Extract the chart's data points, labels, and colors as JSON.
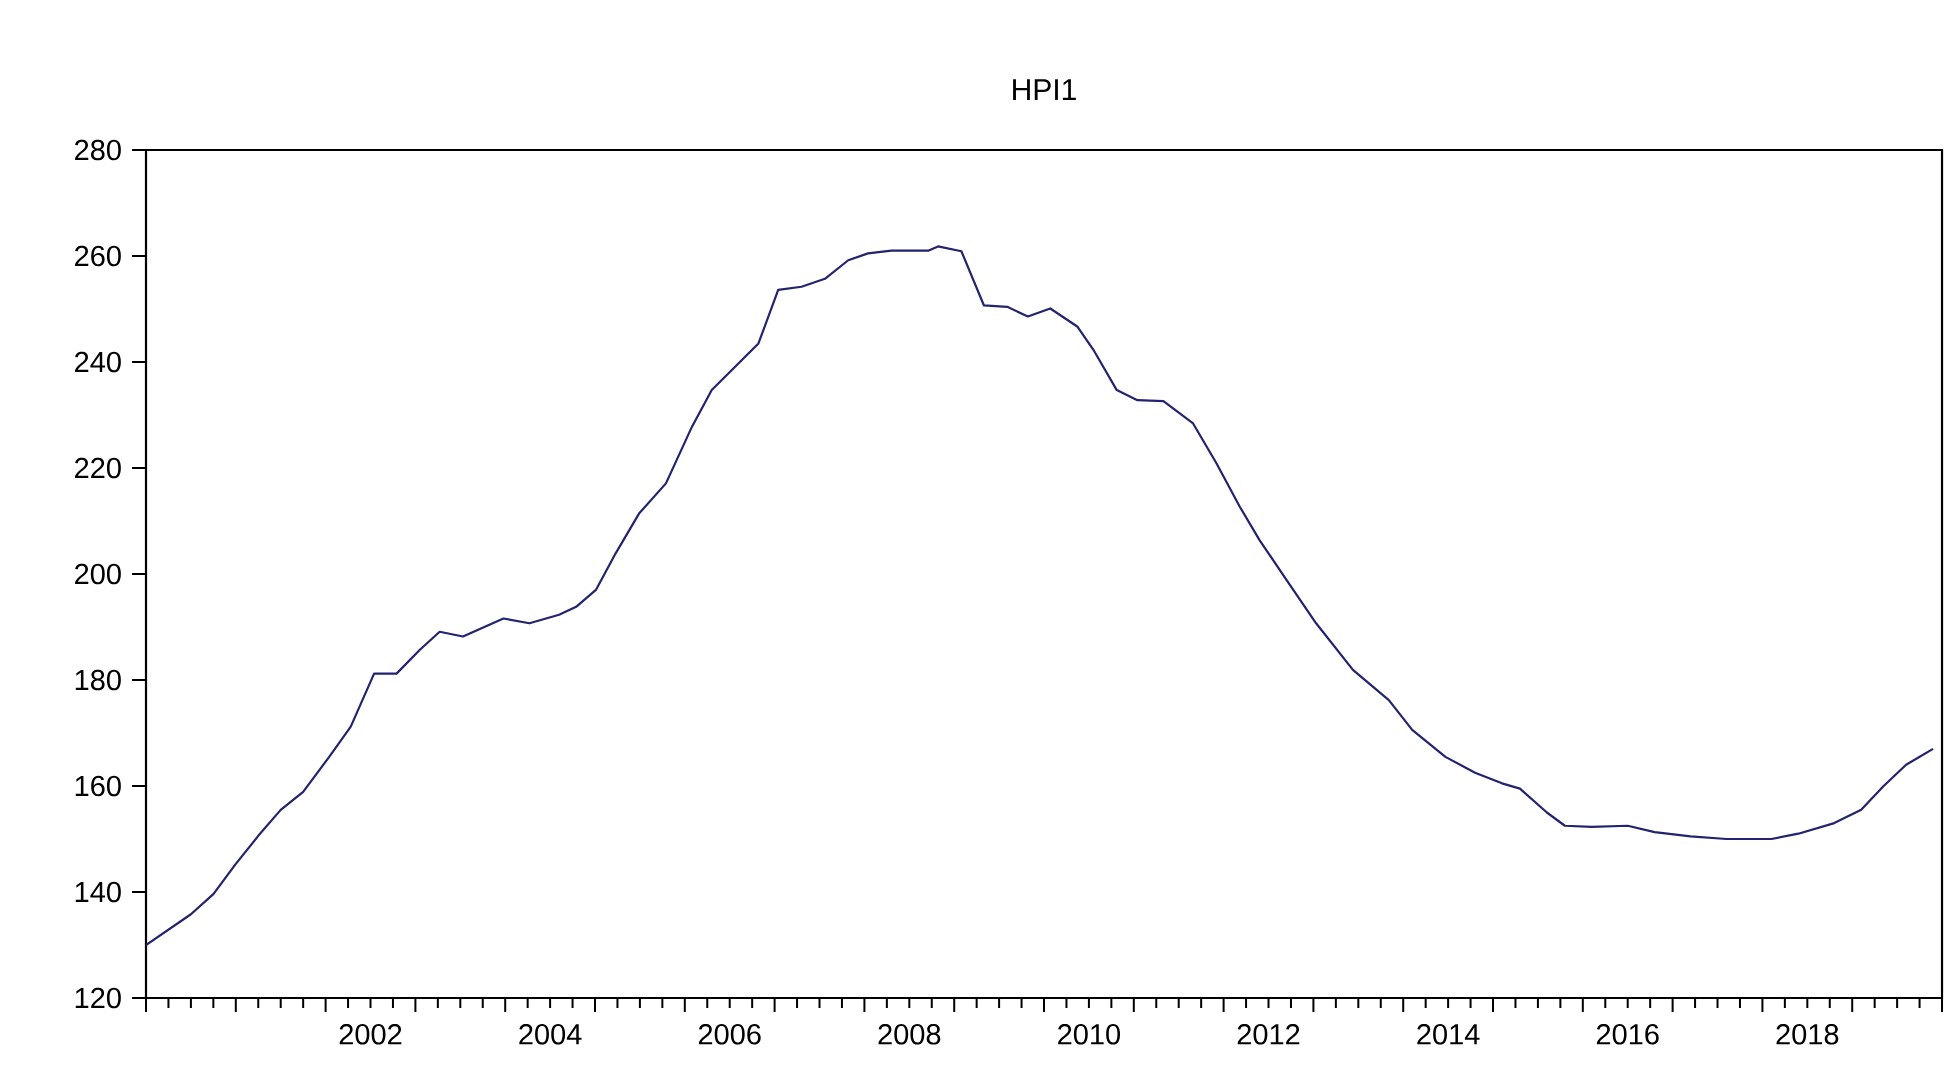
{
  "chart_data": {
    "type": "line",
    "title": "HPI1",
    "x": [
      2000.0,
      2000.5,
      2000.75,
      2001.0,
      2001.25,
      2001.5,
      2001.75,
      2002.04,
      2002.28,
      2002.54,
      2002.79,
      2003.05,
      2003.27,
      2003.53,
      2003.98,
      2004.27,
      2004.6,
      2004.79,
      2005.01,
      2005.23,
      2005.49,
      2005.79,
      2006.08,
      2006.3,
      2006.56,
      2006.82,
      2007.04,
      2007.3,
      2007.56,
      2007.82,
      2008.04,
      2008.3,
      2008.71,
      2008.82,
      2009.08,
      2009.33,
      2009.59,
      2009.82,
      2010.07,
      2010.37,
      2010.55,
      2010.81,
      2011.04,
      2011.33,
      2011.66,
      2011.92,
      2012.18,
      2012.4,
      2012.7,
      2013.03,
      2013.44,
      2013.84,
      2014.1,
      2014.47,
      2014.8,
      2015.1,
      2015.3,
      2015.6,
      2015.8,
      2016.1,
      2016.5,
      2016.8,
      2017.2,
      2017.6,
      2018.1,
      2018.4,
      2018.8,
      2019.1,
      2019.35,
      2019.6,
      2019.9
    ],
    "series": [
      {
        "color": "#23236e",
        "values": [
          130,
          135.8,
          139.6,
          145.3,
          150.6,
          155.5,
          158.9,
          165.5,
          171.2,
          181.2,
          181.2,
          185.7,
          189.1,
          188.2,
          191.6,
          190.7,
          192.3,
          193.8,
          197,
          203.9,
          211.4,
          217.1,
          227.8,
          234.7,
          239.1,
          243.5,
          253.6,
          254.2,
          255.7,
          259.2,
          260.5,
          261,
          261,
          261.8,
          260.9,
          250.7,
          250.4,
          248.6,
          250.1,
          246.7,
          242.3,
          234.7,
          232.8,
          232.6,
          228.4,
          220.9,
          212.7,
          206.4,
          198.9,
          190.7,
          181.9,
          176.2,
          170.6,
          165.5,
          162.5,
          160.5,
          159.5,
          155,
          152.5,
          152.3,
          152.5,
          151.3,
          150.5,
          150,
          150,
          151,
          153,
          155.5,
          160,
          164,
          167
        ]
      }
    ],
    "xlim": [
      2000,
      2020
    ],
    "ylim": [
      120,
      280
    ],
    "xticks": [
      {
        "value": 2000,
        "label": null
      },
      {
        "value": 2001,
        "label": null
      },
      {
        "value": 2002,
        "label": null
      },
      {
        "value": 2003,
        "label": null
      },
      {
        "value": 2004,
        "label": null
      },
      {
        "value": 2005,
        "label": null
      },
      {
        "value": 2006,
        "label": null
      },
      {
        "value": 2007,
        "label": null
      },
      {
        "value": 2008,
        "label": null
      },
      {
        "value": 2009,
        "label": null
      },
      {
        "value": 2010,
        "label": null
      },
      {
        "value": 2011,
        "label": null
      },
      {
        "value": 2012,
        "label": null
      },
      {
        "value": 2013,
        "label": null
      },
      {
        "value": 2014,
        "label": null
      },
      {
        "value": 2015,
        "label": null
      },
      {
        "value": 2016,
        "label": null
      },
      {
        "value": 2017,
        "label": null
      },
      {
        "value": 2018,
        "label": null
      },
      {
        "value": 2019,
        "label": null
      },
      {
        "value": 2020,
        "label": null
      },
      {
        "value": 2002.5,
        "label": "2002"
      },
      {
        "value": 2004.5,
        "label": "2004"
      },
      {
        "value": 2006.5,
        "label": "2006"
      },
      {
        "value": 2008.5,
        "label": "2008"
      },
      {
        "value": 2010.5,
        "label": "2010"
      },
      {
        "value": 2012.5,
        "label": "2012"
      },
      {
        "value": 2014.5,
        "label": "2014"
      },
      {
        "value": 2016.5,
        "label": "2016"
      },
      {
        "value": 2018.5,
        "label": "2018"
      }
    ],
    "yticks": [
      120,
      140,
      160,
      180,
      200,
      220,
      240,
      260,
      280
    ],
    "marker": "none",
    "line_style": "solid"
  }
}
